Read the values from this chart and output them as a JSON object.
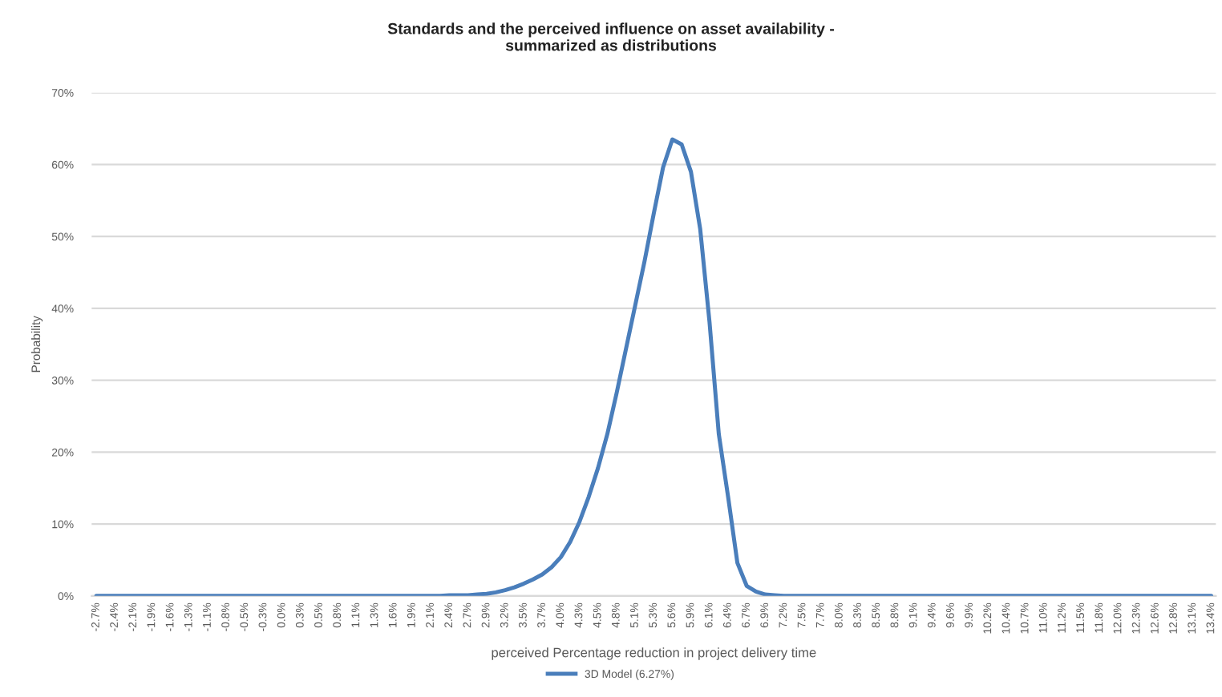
{
  "chart_data": {
    "type": "line",
    "title": "Standards and the perceived influence on asset availability -\nsummarized as distributions",
    "xlabel": "perceived Percentage reduction in project delivery time",
    "ylabel": "Probability",
    "categories": [
      "-2.7%",
      null,
      "-2.4%",
      null,
      "-2.1%",
      null,
      "-1.9%",
      null,
      "-1.6%",
      null,
      "-1.3%",
      null,
      "-1.1%",
      null,
      "-0.8%",
      null,
      "-0.5%",
      null,
      "-0.3%",
      null,
      "0.0%",
      null,
      "0.3%",
      null,
      "0.5%",
      null,
      "0.8%",
      null,
      "1.1%",
      null,
      "1.3%",
      null,
      "1.6%",
      null,
      "1.9%",
      null,
      "2.1%",
      null,
      "2.4%",
      null,
      "2.7%",
      null,
      "2.9%",
      null,
      "3.2%",
      null,
      "3.5%",
      null,
      "3.7%",
      null,
      "4.0%",
      null,
      "4.3%",
      null,
      "4.5%",
      null,
      "4.8%",
      null,
      "5.1%",
      null,
      "5.3%",
      null,
      "5.6%",
      null,
      "5.9%",
      null,
      "6.1%",
      null,
      "6.4%",
      null,
      "6.7%",
      null,
      "6.9%",
      null,
      "7.2%",
      null,
      "7.5%",
      null,
      "7.7%",
      null,
      "8.0%",
      null,
      "8.3%",
      null,
      "8.5%",
      null,
      "8.8%",
      null,
      "9.1%",
      null,
      "9.4%",
      null,
      "9.6%",
      null,
      "9.9%",
      null,
      "10.2%",
      null,
      "10.4%",
      null,
      "10.7%",
      null,
      "11.0%",
      null,
      "11.2%",
      null,
      "11.5%",
      null,
      "11.8%",
      null,
      "12.0%",
      null,
      "12.3%",
      null,
      "12.6%",
      null,
      "12.8%",
      null,
      "13.1%",
      null,
      "13.4%"
    ],
    "series": [
      {
        "name": "3D Model (6.27%)",
        "color": "#4a7ebb",
        "values": [
          0,
          0,
          0,
          0,
          0,
          0,
          0,
          0,
          0,
          0,
          0,
          0,
          0,
          0,
          0,
          0,
          0,
          0,
          0,
          0,
          0,
          0,
          0,
          0,
          0,
          0,
          0,
          0,
          0,
          0,
          0,
          0,
          0,
          0,
          0,
          0.0,
          0.0,
          0.0,
          0.1,
          0.1,
          0.1,
          0.2,
          0.3,
          0.5,
          0.8,
          1.2,
          1.7,
          2.3,
          3.0,
          4.0,
          5.4,
          7.5,
          10.3,
          13.8,
          17.8,
          22.5,
          28.2,
          34.3,
          40.4,
          46.5,
          53.2,
          59.6,
          63.5,
          62.8,
          59.0,
          51.0,
          38.1,
          22.5,
          13.8,
          4.6,
          1.4,
          0.6,
          0.2,
          0.1,
          0,
          0,
          0,
          0,
          0,
          0,
          0,
          0,
          0,
          0,
          0,
          0,
          0,
          0,
          0,
          0,
          0,
          0,
          0,
          0,
          0,
          0,
          0,
          0,
          0,
          0,
          0,
          0,
          0,
          0,
          0,
          0,
          0,
          0,
          0,
          0,
          0,
          0,
          0,
          0,
          0,
          0,
          0,
          0,
          0,
          0,
          0
        ]
      }
    ],
    "ylim": [
      0,
      70
    ],
    "yticks": [
      {
        "value": 0,
        "label": "0%"
      },
      {
        "value": 10,
        "label": "10%"
      },
      {
        "value": 20,
        "label": "20%"
      },
      {
        "value": 30,
        "label": "30%"
      },
      {
        "value": 40,
        "label": "40%"
      },
      {
        "value": 50,
        "label": "50%"
      },
      {
        "value": 60,
        "label": "60%"
      },
      {
        "value": 70,
        "label": "70%"
      }
    ],
    "grid": "y",
    "legend": "bottom"
  }
}
